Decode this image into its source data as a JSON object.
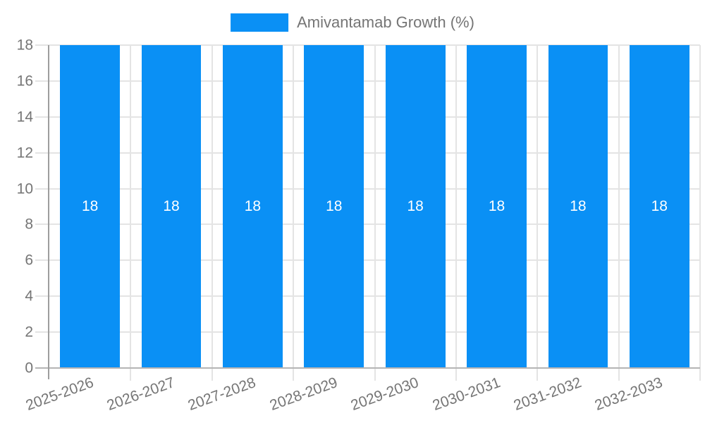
{
  "legend": {
    "label": "Amivantamab Growth (%)"
  },
  "colors": {
    "bar": "#0a90f5",
    "bar_label": "#ffffff",
    "gridline": "#e4e4e4",
    "axis_line": "#9e9e9e",
    "baseline": "#b4b4b4",
    "tick_text": "#757575"
  },
  "chart_data": {
    "type": "bar",
    "title": "",
    "xlabel": "",
    "ylabel": "",
    "categories": [
      "2025-2026",
      "2026-2027",
      "2027-2028",
      "2028-2029",
      "2029-2030",
      "2030-2031",
      "2031-2032",
      "2032-2033"
    ],
    "series": [
      {
        "name": "Amivantamab Growth (%)",
        "values": [
          18,
          18,
          18,
          18,
          18,
          18,
          18,
          18
        ]
      }
    ],
    "values": [
      18,
      18,
      18,
      18,
      18,
      18,
      18,
      18
    ],
    "bar_value_labels": [
      "18",
      "18",
      "18",
      "18",
      "18",
      "18",
      "18",
      "18"
    ],
    "ylim": [
      0,
      18
    ],
    "yticks": [
      0,
      2,
      4,
      6,
      8,
      10,
      12,
      14,
      16,
      18
    ],
    "grid": true,
    "legend_position": "top",
    "x_label_rotation_deg": -20
  }
}
